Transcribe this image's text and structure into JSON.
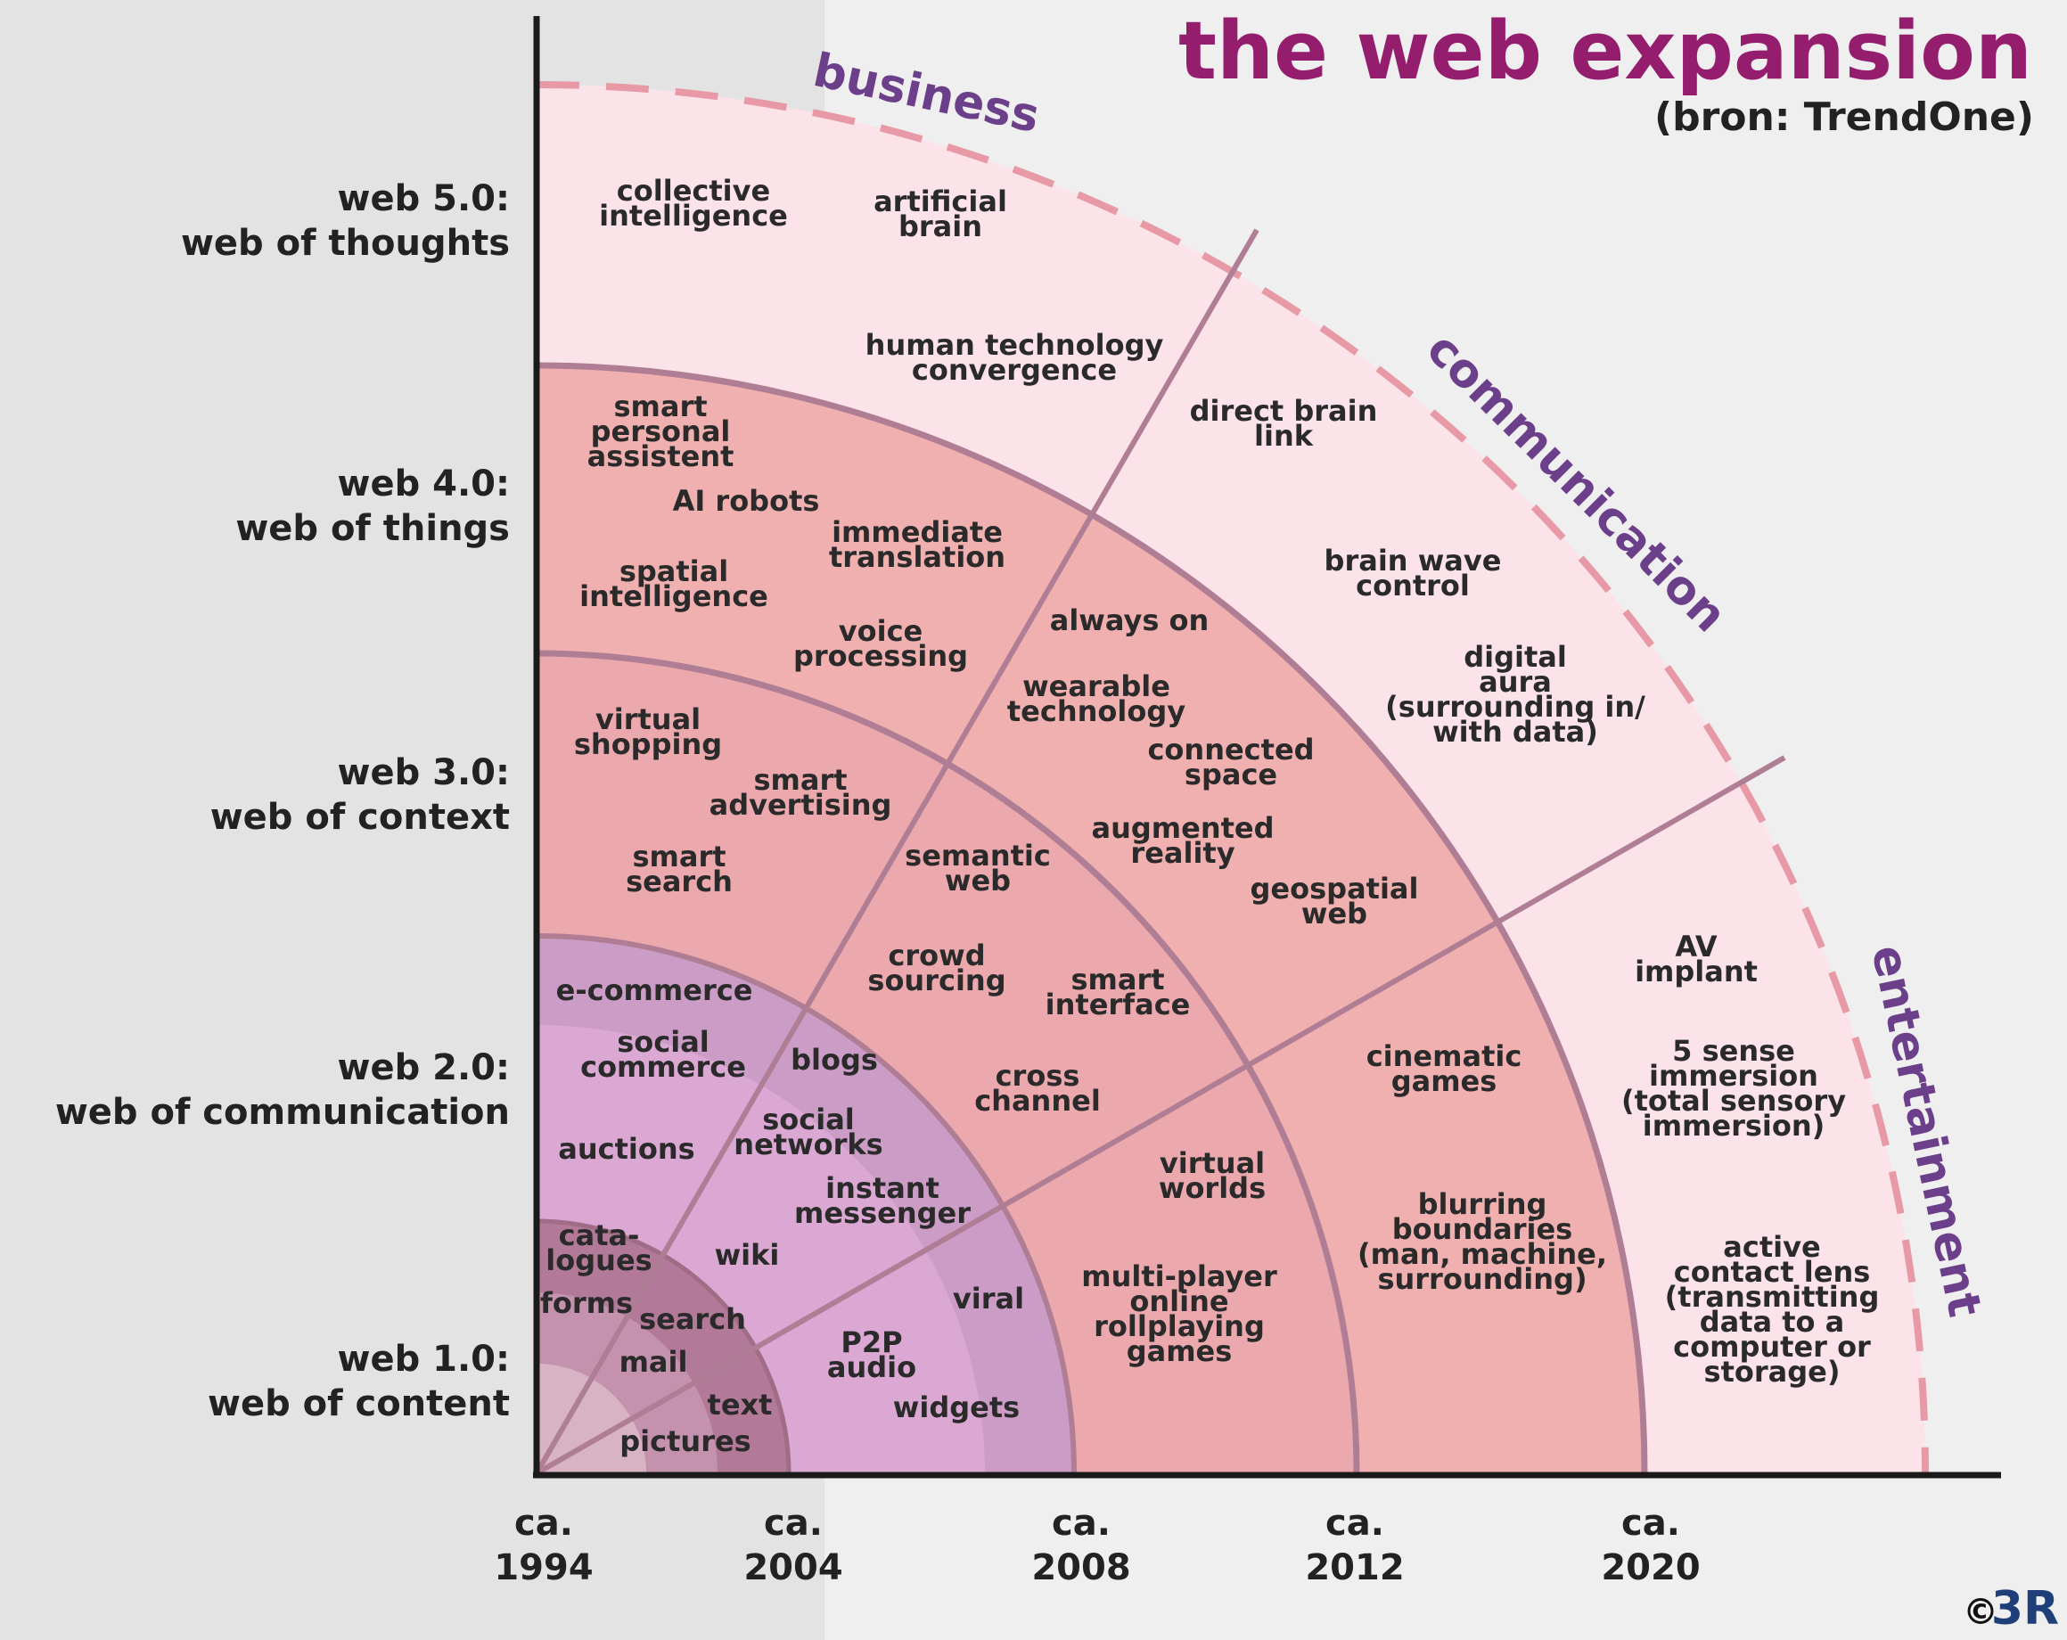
{
  "title": "the web expansion",
  "subtitle": "(bron: TrendOne)",
  "copyright": {
    "symbol": "©",
    "mark": "3R"
  },
  "colors": {
    "background": "#efefef",
    "left_panel": "#e3e3e3",
    "band_1": "#b27a98",
    "band_2": "#cb9cc6",
    "band_3": "#f3b6b6",
    "band_4": "#f0b0b0",
    "band_5": "#fce3ea",
    "divider": "#b07e94",
    "dashed_arc": "#e79aa6",
    "title": "#951d6e",
    "category": "#6b3f8a"
  },
  "categories": [
    "business",
    "communication",
    "entertainment"
  ],
  "levels": [
    {
      "line1": "web 5.0:",
      "line2": "web of thoughts"
    },
    {
      "line1": "web 4.0:",
      "line2": "web of things"
    },
    {
      "line1": "web 3.0:",
      "line2": "web of context"
    },
    {
      "line1": "web 2.0:",
      "line2": "web of communication"
    },
    {
      "line1": "web 1.0:",
      "line2": "web of content"
    }
  ],
  "years": [
    {
      "l1": "ca.",
      "l2": "1994"
    },
    {
      "l1": "ca.",
      "l2": "2004"
    },
    {
      "l1": "ca.",
      "l2": "2008"
    },
    {
      "l1": "ca.",
      "l2": "2012"
    },
    {
      "l1": "ca.",
      "l2": "2020"
    }
  ],
  "items": [
    {
      "level": "web 5.0",
      "lines": [
        "collective",
        "intelligence"
      ]
    },
    {
      "level": "web 5.0",
      "lines": [
        "artificial",
        "brain"
      ]
    },
    {
      "level": "web 5.0",
      "lines": [
        "human technology",
        "convergence"
      ]
    },
    {
      "level": "web 5.0",
      "lines": [
        "direct brain",
        "link"
      ]
    },
    {
      "level": "web 5.0",
      "lines": [
        "brain wave",
        "control"
      ]
    },
    {
      "level": "web 5.0",
      "lines": [
        "digital",
        "aura",
        "(surrounding in/",
        "with data)"
      ]
    },
    {
      "level": "web 5.0",
      "lines": [
        "AV",
        "implant"
      ]
    },
    {
      "level": "web 5.0",
      "lines": [
        "5 sense",
        "immersion",
        "(total sensory",
        "immersion)"
      ]
    },
    {
      "level": "web 5.0",
      "lines": [
        "active",
        "contact lens",
        "(transmitting",
        "data to a",
        "computer or",
        "storage)"
      ]
    },
    {
      "level": "web 4.0",
      "lines": [
        "smart",
        "personal",
        "assistent"
      ]
    },
    {
      "level": "web 4.0",
      "lines": [
        "AI robots"
      ]
    },
    {
      "level": "web 4.0",
      "lines": [
        "immediate",
        "translation"
      ]
    },
    {
      "level": "web 4.0",
      "lines": [
        "spatial",
        "intelligence"
      ]
    },
    {
      "level": "web 4.0",
      "lines": [
        "voice",
        "processing"
      ]
    },
    {
      "level": "web 4.0",
      "lines": [
        "always on"
      ]
    },
    {
      "level": "web 4.0",
      "lines": [
        "wearable",
        "technology"
      ]
    },
    {
      "level": "web 4.0",
      "lines": [
        "connected",
        "space"
      ]
    },
    {
      "level": "web 4.0",
      "lines": [
        "augmented",
        "reality"
      ]
    },
    {
      "level": "web 4.0",
      "lines": [
        "geospatial",
        "web"
      ]
    },
    {
      "level": "web 4.0",
      "lines": [
        "cinematic",
        "games"
      ]
    },
    {
      "level": "web 4.0",
      "lines": [
        "blurring",
        "boundaries",
        "(man, machine,",
        "surrounding)"
      ]
    },
    {
      "level": "web 3.0",
      "lines": [
        "virtual",
        "shopping"
      ]
    },
    {
      "level": "web 3.0",
      "lines": [
        "smart",
        "advertising"
      ]
    },
    {
      "level": "web 3.0",
      "lines": [
        "smart",
        "search"
      ]
    },
    {
      "level": "web 3.0",
      "lines": [
        "semantic",
        "web"
      ]
    },
    {
      "level": "web 3.0",
      "lines": [
        "crowd",
        "sourcing"
      ]
    },
    {
      "level": "web 3.0",
      "lines": [
        "smart",
        "interface"
      ]
    },
    {
      "level": "web 3.0",
      "lines": [
        "cross",
        "channel"
      ]
    },
    {
      "level": "web 3.0",
      "lines": [
        "virtual",
        "worlds"
      ]
    },
    {
      "level": "web 3.0",
      "lines": [
        "multi-player",
        "online",
        "rollplaying",
        "games"
      ]
    },
    {
      "level": "web 2.0",
      "lines": [
        "e-commerce"
      ]
    },
    {
      "level": "web 2.0",
      "lines": [
        "social",
        "commerce"
      ]
    },
    {
      "level": "web 2.0",
      "lines": [
        "blogs"
      ]
    },
    {
      "level": "web 2.0",
      "lines": [
        "social",
        "networks"
      ]
    },
    {
      "level": "web 2.0",
      "lines": [
        "auctions"
      ]
    },
    {
      "level": "web 2.0",
      "lines": [
        "instant",
        "messenger"
      ]
    },
    {
      "level": "web 2.0",
      "lines": [
        "wiki"
      ]
    },
    {
      "level": "web 2.0",
      "lines": [
        "viral"
      ]
    },
    {
      "level": "web 2.0",
      "lines": [
        "P2P",
        "audio"
      ]
    },
    {
      "level": "web 2.0",
      "lines": [
        "widgets"
      ]
    },
    {
      "level": "web 1.0",
      "lines": [
        "cata-",
        "logues"
      ]
    },
    {
      "level": "web 1.0",
      "lines": [
        "forms"
      ]
    },
    {
      "level": "web 1.0",
      "lines": [
        "search"
      ]
    },
    {
      "level": "web 1.0",
      "lines": [
        "mail"
      ]
    },
    {
      "level": "web 1.0",
      "lines": [
        "text"
      ]
    },
    {
      "level": "web 1.0",
      "lines": [
        "pictures"
      ]
    }
  ]
}
